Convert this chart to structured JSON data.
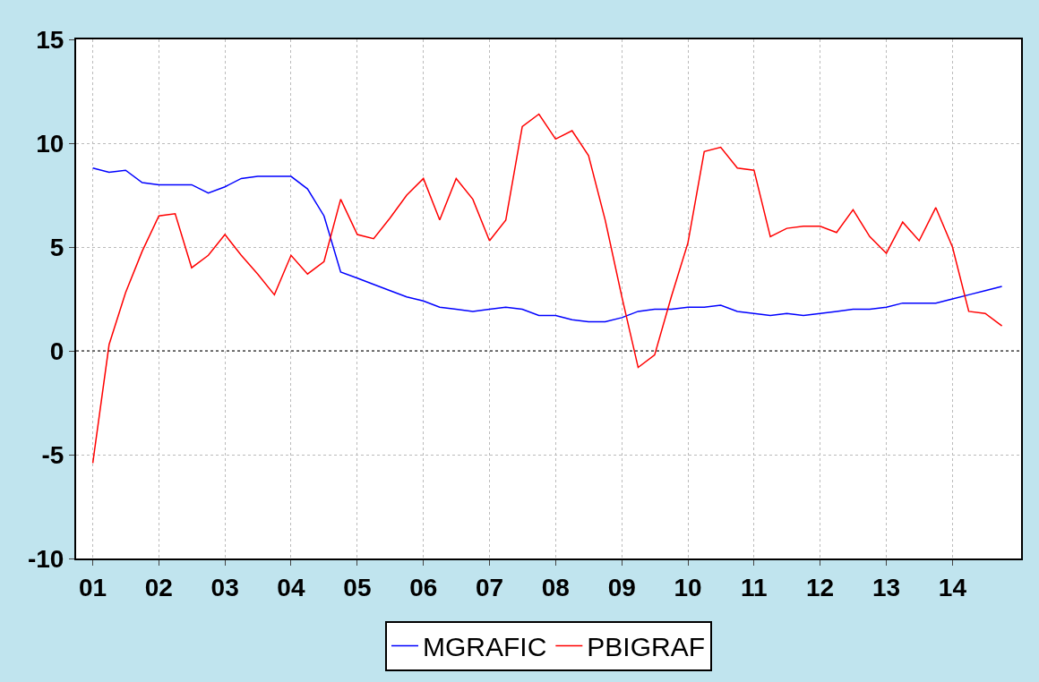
{
  "chart_data": {
    "type": "line",
    "x": [
      "2001-01",
      "2001-04",
      "2001-07",
      "2001-10",
      "2002-01",
      "2002-04",
      "2002-07",
      "2002-10",
      "2003-01",
      "2003-04",
      "2003-07",
      "2003-10",
      "2004-01",
      "2004-04",
      "2004-07",
      "2004-10",
      "2005-01",
      "2005-04",
      "2005-07",
      "2005-10",
      "2006-01",
      "2006-04",
      "2006-07",
      "2006-10",
      "2007-01",
      "2007-04",
      "2007-07",
      "2007-10",
      "2008-01",
      "2008-04",
      "2008-07",
      "2008-10",
      "2009-01",
      "2009-04",
      "2009-07",
      "2009-10",
      "2010-01",
      "2010-04",
      "2010-07",
      "2010-10",
      "2011-01",
      "2011-04",
      "2011-07",
      "2011-10",
      "2012-01",
      "2012-04",
      "2012-07",
      "2012-10",
      "2013-01",
      "2013-04",
      "2013-07",
      "2013-10",
      "2014-01",
      "2014-04",
      "2014-07",
      "2014-10"
    ],
    "series": [
      {
        "name": "MGRAFIC",
        "color": "#0000ff",
        "values": [
          8.8,
          8.6,
          8.7,
          8.1,
          8.0,
          8.0,
          8.0,
          7.6,
          7.9,
          8.3,
          8.4,
          8.4,
          8.4,
          7.8,
          6.5,
          3.8,
          3.5,
          3.2,
          2.9,
          2.6,
          2.4,
          2.1,
          2.0,
          1.9,
          2.0,
          2.1,
          2.0,
          1.7,
          1.7,
          1.5,
          1.4,
          1.4,
          1.6,
          1.9,
          2.0,
          2.0,
          2.1,
          2.1,
          2.2,
          1.9,
          1.8,
          1.7,
          1.8,
          1.7,
          1.8,
          1.9,
          2.0,
          2.0,
          2.1,
          2.3,
          2.3,
          2.3,
          2.5,
          2.7,
          2.9,
          3.1
        ]
      },
      {
        "name": "PBIGRAF",
        "color": "#ff0000",
        "values": [
          -5.4,
          0.3,
          2.8,
          4.8,
          6.5,
          6.6,
          4.0,
          4.6,
          5.6,
          4.6,
          3.7,
          2.7,
          4.6,
          3.7,
          4.3,
          7.3,
          5.6,
          5.4,
          6.4,
          7.5,
          8.3,
          6.3,
          8.3,
          7.3,
          5.3,
          6.3,
          10.8,
          11.4,
          10.2,
          10.6,
          9.4,
          6.3,
          2.6,
          -0.8,
          -0.2,
          2.6,
          5.2,
          9.6,
          9.8,
          8.8,
          8.7,
          5.5,
          5.9,
          6.0,
          6.0,
          5.7,
          6.8,
          5.5,
          4.7,
          6.2,
          5.3,
          6.9,
          5.0,
          1.9,
          1.8,
          1.2
        ]
      }
    ],
    "xlim": [
      "2000-10-01",
      "2015-01-15"
    ],
    "xticks": [
      {
        "value": "2001-01",
        "label": "01"
      },
      {
        "value": "2002-01",
        "label": "02"
      },
      {
        "value": "2003-01",
        "label": "03"
      },
      {
        "value": "2004-01",
        "label": "04"
      },
      {
        "value": "2005-01",
        "label": "05"
      },
      {
        "value": "2006-01",
        "label": "06"
      },
      {
        "value": "2007-01",
        "label": "07"
      },
      {
        "value": "2008-01",
        "label": "08"
      },
      {
        "value": "2009-01",
        "label": "09"
      },
      {
        "value": "2010-01",
        "label": "10"
      },
      {
        "value": "2011-01",
        "label": "11"
      },
      {
        "value": "2012-01",
        "label": "12"
      },
      {
        "value": "2013-01",
        "label": "13"
      },
      {
        "value": "2014-01",
        "label": "14"
      }
    ],
    "ylim": [
      -10,
      15
    ],
    "yticks": [
      -10,
      -5,
      0,
      5,
      10,
      15
    ],
    "ref_lines": [
      {
        "axis": "y",
        "value": 0,
        "color": "#000000",
        "line_style": "dotted"
      }
    ],
    "grid": true,
    "legend": "bottom",
    "marker": "none",
    "line_style": "solid"
  }
}
